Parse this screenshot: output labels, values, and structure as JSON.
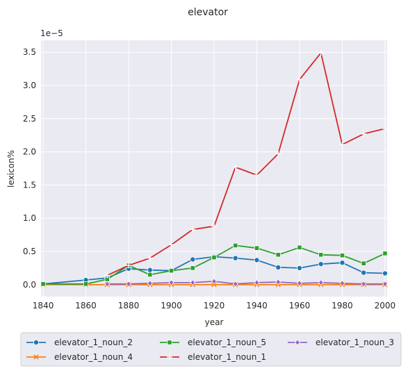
{
  "chart_data": {
    "type": "line",
    "title": "elevator",
    "xlabel": "year",
    "ylabel": "lexicon%",
    "y_multiplier_label": "1e−5",
    "xlim": [
      1839,
      2001
    ],
    "ylim": [
      -0.18,
      3.68
    ],
    "x_ticks": [
      1840,
      1860,
      1880,
      1900,
      1920,
      1940,
      1960,
      1980,
      2000
    ],
    "y_ticks": [
      0.0,
      0.5,
      1.0,
      1.5,
      2.0,
      2.5,
      3.0,
      3.5
    ],
    "y_tick_labels": [
      "0.0",
      "0.5",
      "1.0",
      "1.5",
      "2.0",
      "2.5",
      "3.0",
      "3.5"
    ],
    "grid": true,
    "legend_placement": "bottom",
    "series": [
      {
        "name": "elevator_1_noun_2",
        "color": "#1f77b4",
        "marker": "circle",
        "x": [
          1840,
          1860,
          1870,
          1880,
          1890,
          1900,
          1910,
          1920,
          1930,
          1940,
          1950,
          1960,
          1970,
          1980,
          1990,
          2000
        ],
        "y": [
          0.01,
          0.07,
          0.1,
          0.24,
          0.22,
          0.21,
          0.38,
          0.42,
          0.4,
          0.37,
          0.26,
          0.25,
          0.31,
          0.33,
          0.18,
          0.17
        ]
      },
      {
        "name": "elevator_1_noun_4",
        "color": "#ff7f0e",
        "marker": "x",
        "x": [
          1840,
          1860,
          1870,
          1880,
          1890,
          1900,
          1910,
          1920,
          1930,
          1940,
          1950,
          1960,
          1970,
          1980,
          1990,
          2000
        ],
        "y": [
          0.0,
          0.0,
          0.0,
          0.0,
          0.0,
          0.0,
          0.0,
          0.0,
          0.0,
          0.0,
          0.0,
          0.0,
          0.0,
          0.0,
          0.0,
          0.0
        ]
      },
      {
        "name": "elevator_1_noun_5",
        "color": "#2ca02c",
        "marker": "square",
        "x": [
          1840,
          1860,
          1870,
          1880,
          1890,
          1900,
          1910,
          1920,
          1930,
          1940,
          1950,
          1960,
          1970,
          1980,
          1990,
          2000
        ],
        "y": [
          0.01,
          0.01,
          0.08,
          0.29,
          0.15,
          0.21,
          0.25,
          0.41,
          0.59,
          0.55,
          0.45,
          0.56,
          0.45,
          0.44,
          0.32,
          0.47
        ]
      },
      {
        "name": "elevator_1_noun_1",
        "color": "#d62728",
        "marker": "plus",
        "x": [
          1870,
          1880,
          1890,
          1900,
          1910,
          1920,
          1930,
          1940,
          1950,
          1960,
          1970,
          1980,
          1990,
          2000
        ],
        "y": [
          0.14,
          0.29,
          0.4,
          0.6,
          0.83,
          0.88,
          1.77,
          1.65,
          1.97,
          3.09,
          3.49,
          2.11,
          2.27,
          2.35
        ]
      },
      {
        "name": "elevator_1_noun_3",
        "color": "#9467bd",
        "marker": "diamond",
        "x": [
          1870,
          1880,
          1890,
          1900,
          1910,
          1920,
          1930,
          1940,
          1950,
          1960,
          1970,
          1980,
          1990,
          2000
        ],
        "y": [
          0.01,
          0.01,
          0.02,
          0.03,
          0.03,
          0.05,
          0.01,
          0.03,
          0.04,
          0.02,
          0.03,
          0.02,
          0.01,
          0.01
        ]
      }
    ]
  }
}
